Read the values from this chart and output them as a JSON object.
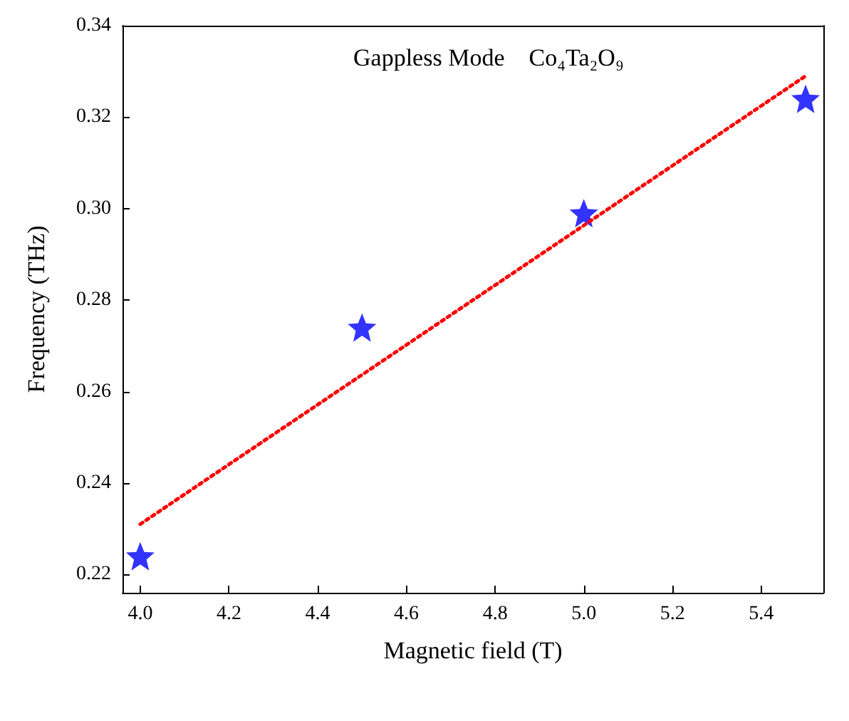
{
  "chart_data": {
    "type": "scatter",
    "xlabel": "Magnetic field (T)",
    "ylabel": "Frequency (THz)",
    "annotations": [
      "Gappless Mode    Co₄Ta₂O₉"
    ],
    "x": [
      4.0,
      4.5,
      5.0,
      5.5
    ],
    "series": [
      {
        "color": "#0000ff",
        "marker": "star",
        "values": [
          0.224,
          0.274,
          0.299,
          0.324
        ]
      },
      {
        "type": "line",
        "color": "#ff0000",
        "marker": "none",
        "line_style": "dotted",
        "x": [
          4.0,
          5.5
        ],
        "values": [
          0.231,
          0.329
        ]
      }
    ],
    "xlim": [
      3.96,
      5.54
    ],
    "ylim": [
      0.216,
      0.34
    ],
    "xticks": [
      {
        "value": 4.0,
        "label": "4.0"
      },
      {
        "value": 4.2,
        "label": "4.2"
      },
      {
        "value": 4.4,
        "label": "4.4"
      },
      {
        "value": 4.6,
        "label": "4.6"
      },
      {
        "value": 4.8,
        "label": "4.8"
      },
      {
        "value": 5.0,
        "label": "5.0"
      },
      {
        "value": 5.2,
        "label": "5.2"
      },
      {
        "value": 5.4,
        "label": "5.4"
      }
    ],
    "yticks": [
      {
        "value": 0.22,
        "label": "0.22"
      },
      {
        "value": 0.24,
        "label": "0.24"
      },
      {
        "value": 0.26,
        "label": "0.26"
      },
      {
        "value": 0.28,
        "label": "0.28"
      },
      {
        "value": 0.3,
        "label": "0.30"
      },
      {
        "value": 0.32,
        "label": "0.32"
      },
      {
        "value": 0.34,
        "label": "0.34"
      }
    ],
    "grid": false
  }
}
